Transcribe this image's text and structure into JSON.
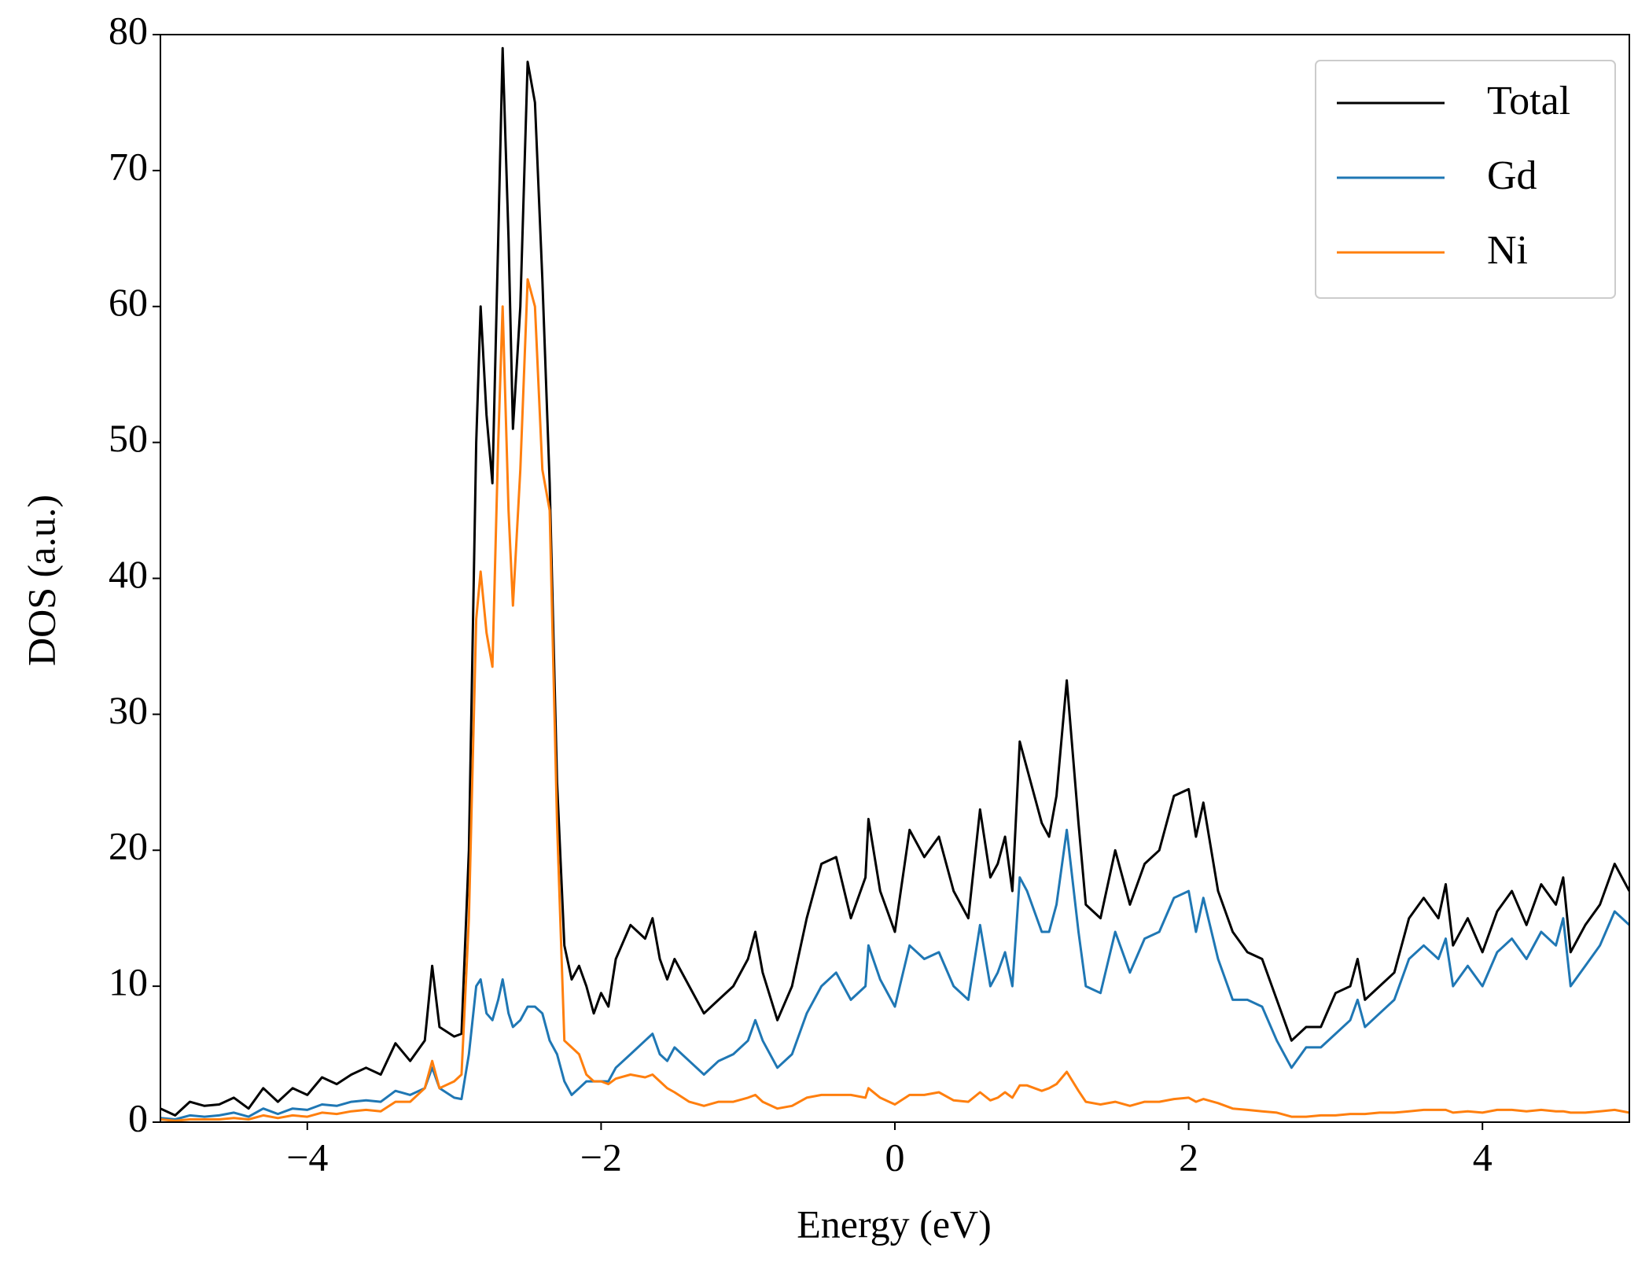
{
  "chart_data": {
    "type": "line",
    "xlabel": "Energy (eV)",
    "ylabel": "DOS (a.u.)",
    "x": [
      -5.0,
      -4.9,
      -4.8,
      -4.7,
      -4.6,
      -4.5,
      -4.4,
      -4.3,
      -4.2,
      -4.1,
      -4.0,
      -3.9,
      -3.8,
      -3.7,
      -3.6,
      -3.5,
      -3.4,
      -3.3,
      -3.2,
      -3.15,
      -3.1,
      -3.0,
      -2.95,
      -2.9,
      -2.85,
      -2.82,
      -2.78,
      -2.74,
      -2.7,
      -2.67,
      -2.63,
      -2.6,
      -2.55,
      -2.5,
      -2.45,
      -2.4,
      -2.35,
      -2.3,
      -2.25,
      -2.2,
      -2.15,
      -2.1,
      -2.05,
      -2.0,
      -1.95,
      -1.9,
      -1.8,
      -1.7,
      -1.65,
      -1.6,
      -1.55,
      -1.5,
      -1.4,
      -1.3,
      -1.2,
      -1.1,
      -1.0,
      -0.95,
      -0.9,
      -0.8,
      -0.7,
      -0.6,
      -0.5,
      -0.4,
      -0.3,
      -0.2,
      -0.18,
      -0.1,
      0.0,
      0.1,
      0.2,
      0.3,
      0.4,
      0.5,
      0.58,
      0.65,
      0.7,
      0.75,
      0.8,
      0.85,
      0.9,
      1.0,
      1.05,
      1.1,
      1.17,
      1.25,
      1.3,
      1.4,
      1.5,
      1.6,
      1.7,
      1.8,
      1.9,
      2.0,
      2.05,
      2.1,
      2.2,
      2.3,
      2.4,
      2.5,
      2.6,
      2.7,
      2.8,
      2.9,
      3.0,
      3.1,
      3.15,
      3.2,
      3.3,
      3.4,
      3.5,
      3.6,
      3.7,
      3.75,
      3.8,
      3.9,
      4.0,
      4.1,
      4.2,
      4.3,
      4.4,
      4.5,
      4.55,
      4.6,
      4.7,
      4.8,
      4.9,
      5.0
    ],
    "series": [
      {
        "name": "Total",
        "color": "#000000",
        "values": [
          1,
          0.5,
          1.5,
          1.2,
          1.3,
          1.8,
          1,
          2.5,
          1.5,
          2.5,
          2,
          3.3,
          2.8,
          3.5,
          4,
          3.5,
          5.8,
          4.5,
          6,
          11.5,
          7,
          6.3,
          6.5,
          20,
          50,
          60,
          52,
          47,
          65,
          79,
          65,
          51,
          60,
          78,
          75,
          62,
          47,
          25,
          13,
          10.5,
          11.5,
          10,
          8,
          9.5,
          8.5,
          12,
          14.5,
          13.5,
          15,
          12,
          10.5,
          12,
          10,
          8,
          9,
          10,
          12,
          14,
          11,
          7.5,
          10,
          15,
          19,
          19.5,
          15,
          18,
          22.3,
          17,
          14,
          21.5,
          19.5,
          21,
          17,
          15,
          23,
          18,
          19,
          21,
          17,
          28,
          26,
          22,
          21,
          24,
          32.5,
          22,
          16,
          15,
          20,
          16,
          19,
          20,
          24,
          24.5,
          21,
          23.5,
          17,
          14,
          12.5,
          12,
          9,
          6,
          7,
          7,
          9.5,
          10,
          12,
          9,
          10,
          11,
          15,
          16.5,
          15,
          17.5,
          13,
          15,
          12.5,
          15.5,
          17,
          14.5,
          17.5,
          16,
          18,
          12.5,
          14.5,
          16,
          19,
          17
        ]
      },
      {
        "name": "Gd",
        "color": "#1f77b4",
        "values": [
          0.3,
          0.2,
          0.5,
          0.4,
          0.5,
          0.7,
          0.4,
          1,
          0.6,
          1,
          0.9,
          1.3,
          1.2,
          1.5,
          1.6,
          1.5,
          2.3,
          2,
          2.5,
          4,
          2.5,
          1.8,
          1.7,
          5,
          10,
          10.5,
          8,
          7.5,
          9,
          10.5,
          8,
          7,
          7.5,
          8.5,
          8.5,
          8,
          6,
          5,
          3,
          2,
          2.5,
          3,
          3,
          3,
          3,
          4,
          5,
          6,
          6.5,
          5,
          4.5,
          5.5,
          4.5,
          3.5,
          4.5,
          5,
          6,
          7.5,
          6,
          4,
          5,
          8,
          10,
          11,
          9,
          10,
          13,
          10.5,
          8.5,
          13,
          12,
          12.5,
          10,
          9,
          14.5,
          10,
          11,
          12.5,
          10,
          18,
          17,
          14,
          14,
          16,
          21.5,
          14,
          10,
          9.5,
          14,
          11,
          13.5,
          14,
          16.5,
          17,
          14,
          16.5,
          12,
          9,
          9,
          8.5,
          6,
          4,
          5.5,
          5.5,
          6.5,
          7.5,
          9,
          7,
          8,
          9,
          12,
          13,
          12,
          13.5,
          10,
          11.5,
          10,
          12.5,
          13.5,
          12,
          14,
          13,
          15,
          10,
          11.5,
          13,
          15.5,
          14.5
        ]
      },
      {
        "name": "Ni",
        "color": "#ff7f0e",
        "values": [
          0.2,
          0.1,
          0.2,
          0.2,
          0.2,
          0.3,
          0.2,
          0.5,
          0.3,
          0.5,
          0.4,
          0.7,
          0.6,
          0.8,
          0.9,
          0.8,
          1.5,
          1.5,
          2.5,
          4.5,
          2.5,
          3,
          3.5,
          15,
          37,
          40.5,
          36,
          33.5,
          50,
          60,
          45,
          38,
          48,
          62,
          60,
          48,
          45,
          22,
          6,
          5.5,
          5,
          3.5,
          3,
          3,
          2.8,
          3.2,
          3.5,
          3.3,
          3.5,
          3,
          2.5,
          2.2,
          1.5,
          1.2,
          1.5,
          1.5,
          1.8,
          2,
          1.5,
          1,
          1.2,
          1.8,
          2,
          2,
          2,
          1.8,
          2.5,
          1.8,
          1.3,
          2,
          2,
          2.2,
          1.6,
          1.5,
          2.2,
          1.6,
          1.8,
          2.2,
          1.8,
          2.7,
          2.7,
          2.3,
          2.5,
          2.8,
          3.7,
          2.3,
          1.5,
          1.3,
          1.5,
          1.2,
          1.5,
          1.5,
          1.7,
          1.8,
          1.5,
          1.7,
          1.4,
          1,
          0.9,
          0.8,
          0.7,
          0.4,
          0.4,
          0.5,
          0.5,
          0.6,
          0.6,
          0.6,
          0.7,
          0.7,
          0.8,
          0.9,
          0.9,
          0.9,
          0.7,
          0.8,
          0.7,
          0.9,
          0.9,
          0.8,
          0.9,
          0.8,
          0.8,
          0.7,
          0.7,
          0.8,
          0.9,
          0.7
        ]
      }
    ],
    "xlim": [
      -5,
      5
    ],
    "xticks": [
      {
        "value": -4,
        "label": "−4"
      },
      {
        "value": -2,
        "label": "−2"
      },
      0,
      2,
      4
    ],
    "ylim": [
      0,
      80
    ],
    "yticks": [
      0,
      10,
      20,
      30,
      40,
      50,
      60,
      70,
      80
    ],
    "grid": false,
    "legend": "upper right"
  }
}
